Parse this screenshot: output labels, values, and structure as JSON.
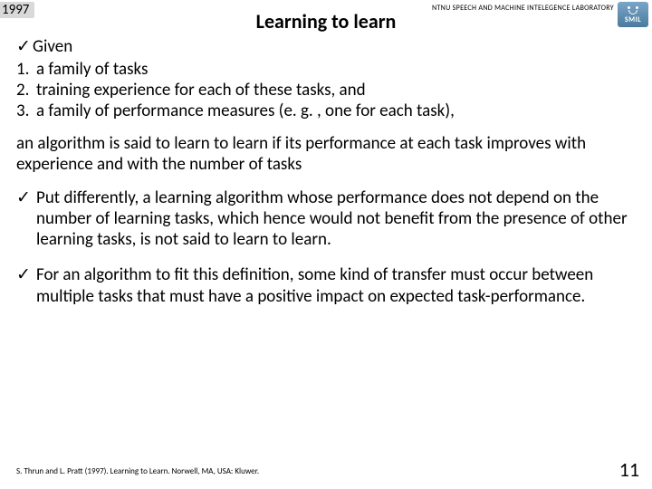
{
  "year": "1997",
  "lab_name": "NTNU SPEECH AND MACHINE INTELEGENCE LABORATORY",
  "logo_text": "SMIL",
  "title": "Learning to learn",
  "given_label": "Given",
  "list": {
    "n1": "1.",
    "t1": "a family of tasks",
    "n2": "2.",
    "t2": "training experience for each of these tasks, and",
    "n3": "3.",
    "t3": "a family of performance measures (e. g. , one for each task),"
  },
  "para1": "an algorithm is said to learn to learn if its performance at each task improves with experience and with the number of tasks",
  "bullet1": "Put differently, a learning algorithm whose performance does not depend on the number of learning tasks, which hence would not benefit from the presence of other learning tasks, is not said to learn to learn.",
  "bullet2": "For an algorithm to fit this definition, some kind of transfer must occur between multiple tasks that must have a positive impact on expected task-performance.",
  "citation": "S. Thrun and L. Pratt (1997). Learning to Learn. Norwell, MA, USA: Kluwer.",
  "page_number": "11",
  "check_glyph": "✓"
}
